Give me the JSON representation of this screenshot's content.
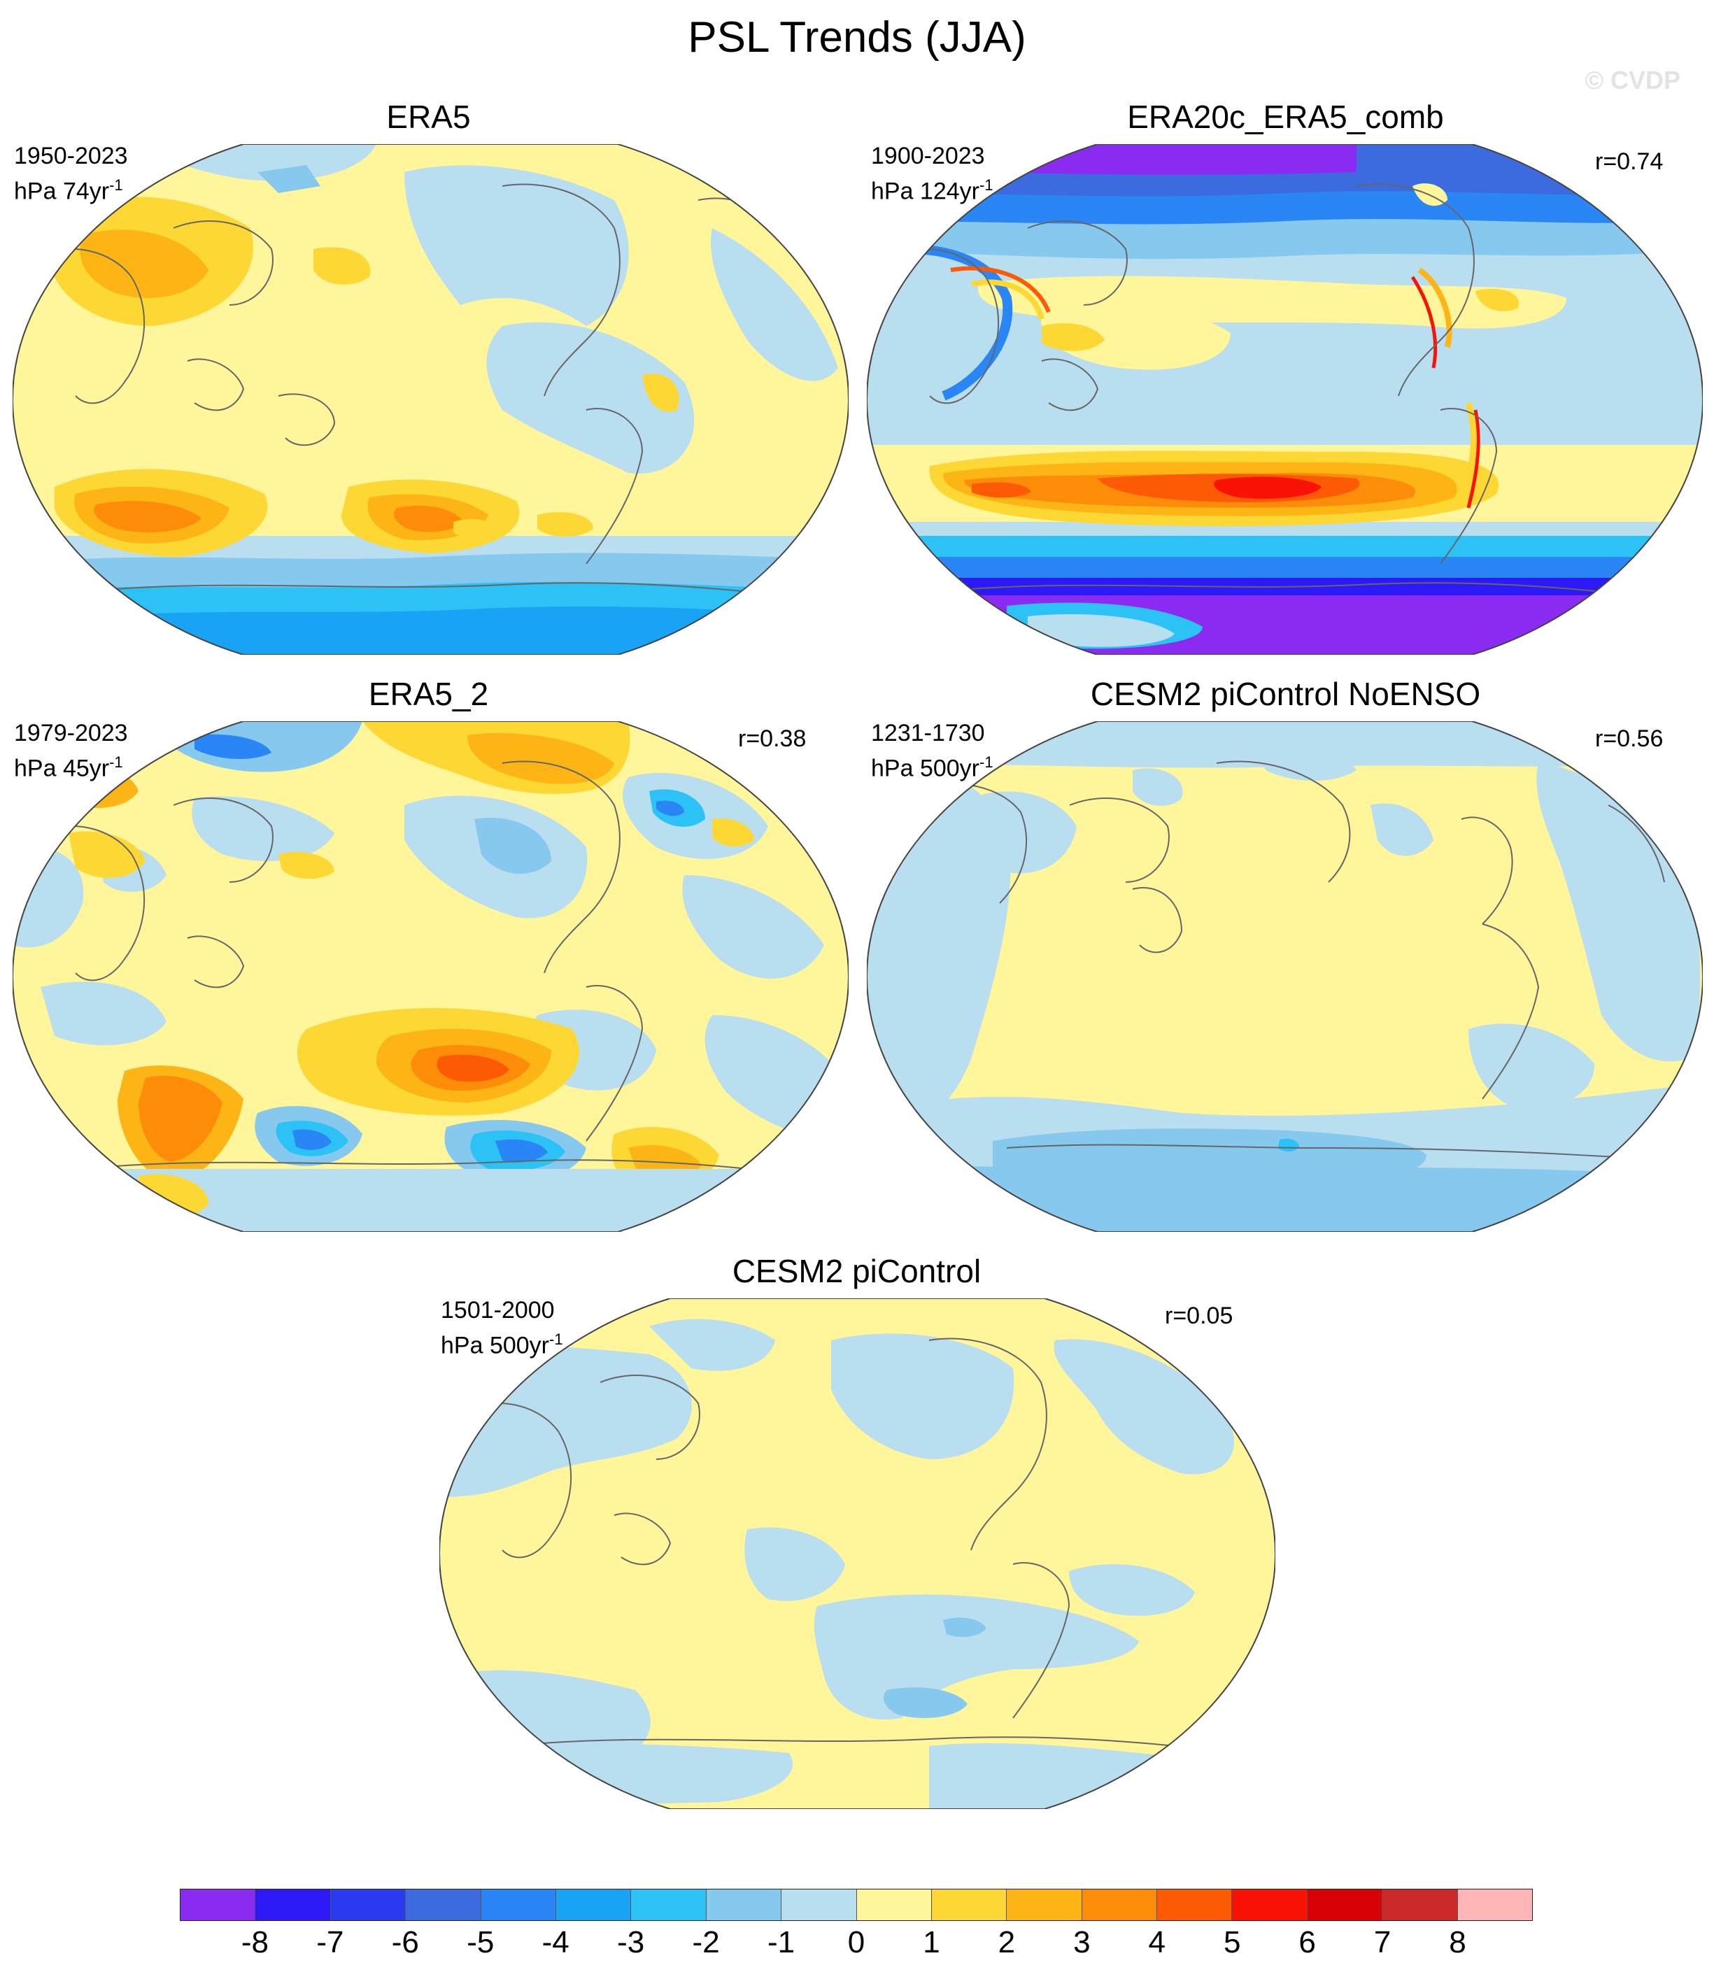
{
  "title": "PSL Trends (JJA)",
  "watermark": "© CVDP",
  "panels": [
    {
      "id": "era5",
      "title": "ERA5",
      "period": "1950-2023",
      "units": "hPa 74yr",
      "units_exp": "-1",
      "corr": ""
    },
    {
      "id": "era20c",
      "title": "ERA20c_ERA5_comb",
      "period": "1900-2023",
      "units": "hPa 124yr",
      "units_exp": "-1",
      "corr": "r=0.74"
    },
    {
      "id": "era5_2",
      "title": "ERA5_2",
      "period": "1979-2023",
      "units": "hPa 45yr",
      "units_exp": "-1",
      "corr": "r=0.38"
    },
    {
      "id": "cesm2_noenso",
      "title": "CESM2 piControl NoENSO",
      "period": "1231-1730",
      "units": "hPa 500yr",
      "units_exp": "-1",
      "corr": "r=0.56"
    },
    {
      "id": "cesm2_pi",
      "title": "CESM2 piControl",
      "period": "1501-2000",
      "units": "hPa 500yr",
      "units_exp": "-1",
      "corr": "r=0.05"
    }
  ],
  "colorbar": {
    "colors": [
      "#8b2af0",
      "#2c19f5",
      "#2a3cf0",
      "#3c6be0",
      "#2b86f5",
      "#1aa3f5",
      "#2cc2f5",
      "#86c8ee",
      "#b8def0",
      "#fff59a",
      "#fdd835",
      "#fdb515",
      "#fd8c09",
      "#fd5a05",
      "#fa1205",
      "#d80205",
      "#cc2a2a",
      "#fdb5b5"
    ],
    "labels": [
      "-8",
      "-7",
      "-6",
      "-5",
      "-4",
      "-3",
      "-2",
      "-1",
      "0",
      "1",
      "2",
      "3",
      "4",
      "5",
      "6",
      "7",
      "8"
    ]
  }
}
